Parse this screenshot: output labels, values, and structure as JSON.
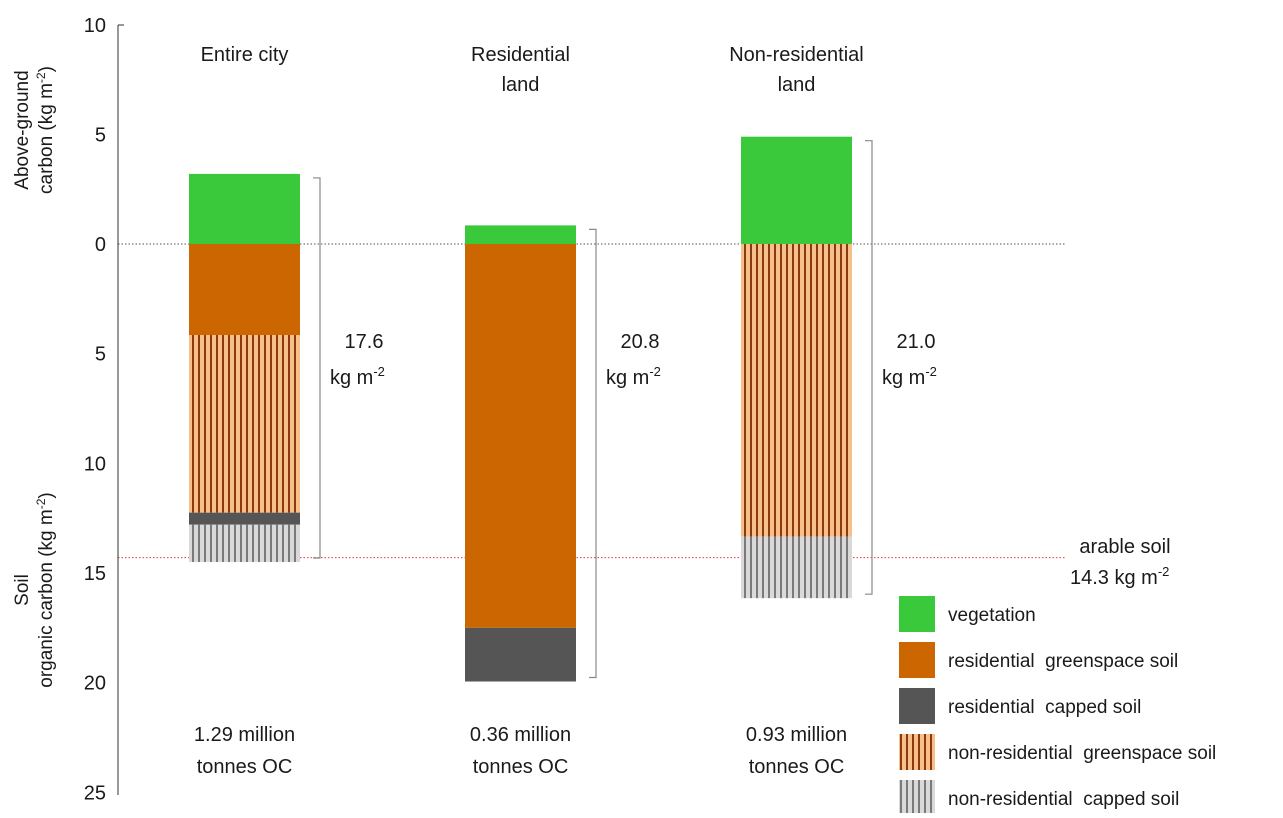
{
  "chart_data": {
    "type": "bar",
    "layout": "stacked, diverging at zero: vegetation above ground (upward), soil stacks downward",
    "y_axis_label_top": "Above-ground carbon (kg m-2)",
    "y_axis_label_bottom": "Soil organic carbon (kg m-2)",
    "yticks_above": [
      10,
      5,
      0
    ],
    "yticks_below": [
      5,
      10,
      15,
      20,
      25
    ],
    "ylim_above": [
      0,
      10
    ],
    "ylim_below": [
      0,
      25
    ],
    "categories": [
      "Entire city",
      "Residential\nland",
      "Non-residential\nland"
    ],
    "series": [
      {
        "name": "vegetation",
        "key": "vegetation",
        "direction": "up",
        "color": "#39c93a",
        "pattern": "solid",
        "values": [
          3.2,
          0.85,
          4.9
        ]
      },
      {
        "name": "residential  greenspace soil",
        "key": "res_green",
        "direction": "down",
        "color": "#cc6600",
        "pattern": "solid",
        "values": [
          4.15,
          17.5,
          0
        ]
      },
      {
        "name": "non-residential  greenspace soil",
        "key": "nonres_green",
        "direction": "down",
        "color": "#f7c08a",
        "stripe_color": "#8b3a10",
        "pattern": "stripes",
        "values": [
          8.1,
          0,
          13.35
        ]
      },
      {
        "name": "residential  capped soil",
        "key": "res_capped",
        "direction": "down",
        "color": "#555555",
        "pattern": "solid",
        "values": [
          0.55,
          2.45,
          0
        ]
      },
      {
        "name": "non-residential  capped soil",
        "key": "nonres_capped",
        "direction": "down",
        "color": "#d9d9d9",
        "stripe_color": "#7a7a7a",
        "pattern": "stripes",
        "values": [
          1.7,
          0,
          2.8
        ]
      }
    ],
    "legend_order": [
      "vegetation",
      "res_green",
      "res_capped",
      "nonres_green",
      "nonres_capped"
    ],
    "totals": [
      {
        "value": "17.6",
        "unit": "kg m",
        "sup": "-2"
      },
      {
        "value": "20.8",
        "unit": "kg m",
        "sup": "-2"
      },
      {
        "value": "21.0",
        "unit": "kg m",
        "sup": "-2"
      }
    ],
    "tonnes": [
      {
        "line1": "1.29 million",
        "line2": "tonnes OC"
      },
      {
        "line1": "0.36 million",
        "line2": "tonnes OC"
      },
      {
        "line1": "0.93 million",
        "line2": "tonnes OC"
      }
    ],
    "reference_lines": [
      {
        "name": "zero",
        "value": 0,
        "color": "#555555",
        "style": "dotted"
      },
      {
        "name": "arable",
        "value": 14.3,
        "direction": "down",
        "color": "#e23b2e",
        "style": "dotted",
        "label_line1": "arable soil",
        "label_line2": "14.3 kg m",
        "label_sup": "-2"
      }
    ],
    "legend_placement": "bottom-right",
    "grid": false
  }
}
